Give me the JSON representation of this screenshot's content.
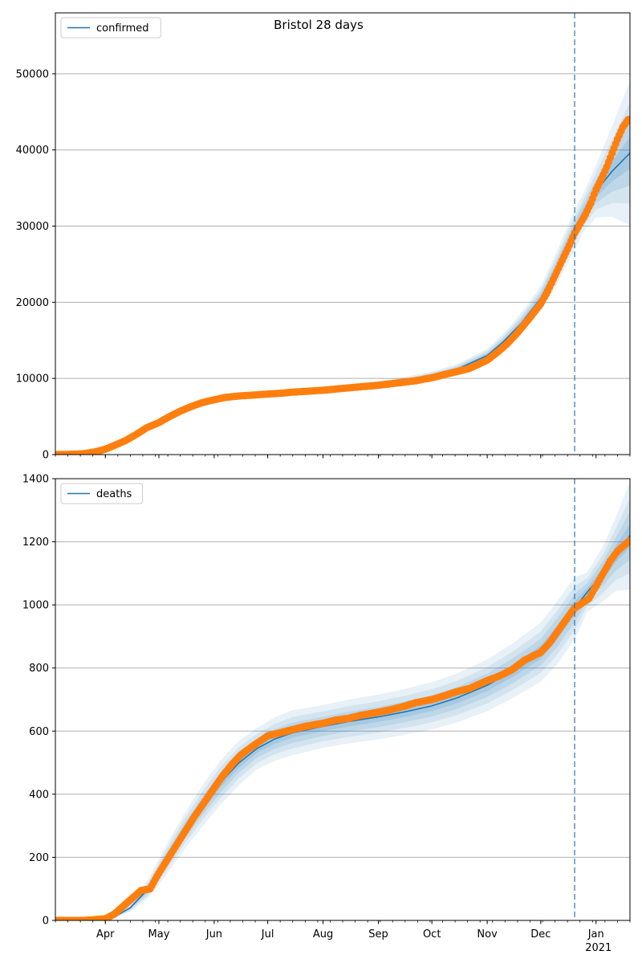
{
  "figure": {
    "title": "Bristol 28 days"
  },
  "colors": {
    "model_line": "#1f77b4",
    "observed": "#ff7f0e",
    "band": "#1f77b4",
    "grid": "#b0b0b0",
    "today_line": "#1f77b4"
  },
  "chart_data": [
    {
      "type": "line",
      "name": "confirmed-panel",
      "title": "Bristol 28 days",
      "xlabel": "",
      "ylabel": "",
      "x_unit": "date",
      "xlim": [
        "2020-03-04",
        "2021-01-20"
      ],
      "ylim": [
        0,
        58000
      ],
      "yticks": [
        0,
        10000,
        20000,
        30000,
        40000,
        50000
      ],
      "xticks": [
        {
          "date": "2020-04-01",
          "label": "Apr"
        },
        {
          "date": "2020-05-01",
          "label": "May"
        },
        {
          "date": "2020-06-01",
          "label": "Jun"
        },
        {
          "date": "2020-07-01",
          "label": "Jul"
        },
        {
          "date": "2020-08-01",
          "label": "Aug"
        },
        {
          "date": "2020-09-01",
          "label": "Sep"
        },
        {
          "date": "2020-10-01",
          "label": "Oct"
        },
        {
          "date": "2020-11-01",
          "label": "Nov"
        },
        {
          "date": "2020-12-01",
          "label": "Dec"
        },
        {
          "date": "2021-01-01",
          "label": "Jan"
        }
      ],
      "xtick_show_labels": false,
      "grid": "y",
      "legend": {
        "position": "top-left",
        "entries": [
          "confirmed"
        ]
      },
      "vline": "2020-12-20",
      "model": {
        "name": "confirmed",
        "dates": [
          "2020-03-04",
          "2020-03-20",
          "2020-04-01",
          "2020-04-10",
          "2020-04-20",
          "2020-05-01",
          "2020-05-10",
          "2020-05-20",
          "2020-06-01",
          "2020-06-15",
          "2020-07-01",
          "2020-07-15",
          "2020-08-01",
          "2020-08-15",
          "2020-09-01",
          "2020-09-15",
          "2020-10-01",
          "2020-10-15",
          "2020-11-01",
          "2020-11-10",
          "2020-11-20",
          "2020-12-01",
          "2020-12-10",
          "2020-12-20",
          "2020-12-25",
          "2021-01-01",
          "2021-01-10",
          "2021-01-20"
        ],
        "values": [
          0,
          100,
          700,
          1500,
          2700,
          4000,
          5200,
          6300,
          7200,
          7700,
          8000,
          8200,
          8500,
          8800,
          9200,
          9600,
          10300,
          11200,
          13000,
          14800,
          17200,
          20500,
          24500,
          29500,
          31800,
          34600,
          37200,
          39600
        ],
        "band_rel": [
          0.05,
          0.05,
          0.05,
          0.05,
          0.05,
          0.05,
          0.05,
          0.05,
          0.05,
          0.05,
          0.05,
          0.05,
          0.05,
          0.05,
          0.05,
          0.06,
          0.06,
          0.06,
          0.07,
          0.07,
          0.08,
          0.08,
          0.09,
          0.09,
          0.08,
          0.1,
          0.16,
          0.24
        ]
      },
      "observed": {
        "name": "observed",
        "dates": [
          "2020-03-04",
          "2020-03-12",
          "2020-03-20",
          "2020-03-26",
          "2020-04-01",
          "2020-04-06",
          "2020-04-12",
          "2020-04-18",
          "2020-04-24",
          "2020-05-01",
          "2020-05-07",
          "2020-05-13",
          "2020-05-19",
          "2020-05-25",
          "2020-06-01",
          "2020-06-07",
          "2020-06-15",
          "2020-06-22",
          "2020-07-01",
          "2020-07-08",
          "2020-07-15",
          "2020-07-22",
          "2020-08-01",
          "2020-08-08",
          "2020-08-15",
          "2020-08-22",
          "2020-09-01",
          "2020-09-08",
          "2020-09-15",
          "2020-09-22",
          "2020-10-01",
          "2020-10-08",
          "2020-10-15",
          "2020-10-22",
          "2020-11-01",
          "2020-11-06",
          "2020-11-12",
          "2020-11-18",
          "2020-11-24",
          "2020-12-01",
          "2020-12-05",
          "2020-12-09",
          "2020-12-13",
          "2020-12-17",
          "2020-12-20",
          "2020-12-23",
          "2020-12-26",
          "2020-12-29",
          "2021-01-01",
          "2021-01-04",
          "2021-01-07",
          "2021-01-10",
          "2021-01-13",
          "2021-01-16",
          "2021-01-19"
        ],
        "values": [
          0,
          30,
          120,
          350,
          700,
          1200,
          1800,
          2600,
          3500,
          4200,
          5000,
          5700,
          6300,
          6800,
          7200,
          7500,
          7700,
          7800,
          7950,
          8050,
          8200,
          8300,
          8450,
          8600,
          8750,
          8900,
          9100,
          9300,
          9500,
          9700,
          10100,
          10500,
          10900,
          11300,
          12400,
          13300,
          14500,
          16000,
          17700,
          19800,
          21500,
          23500,
          25500,
          27500,
          29100,
          30300,
          31500,
          33000,
          34800,
          36200,
          37800,
          39600,
          41400,
          43000,
          44000
        ]
      }
    },
    {
      "type": "line",
      "name": "deaths-panel",
      "xlabel": "",
      "ylabel": "",
      "x_unit": "date",
      "xlim": [
        "2020-03-04",
        "2021-01-20"
      ],
      "ylim": [
        0,
        1400
      ],
      "yticks": [
        0,
        200,
        400,
        600,
        800,
        1000,
        1200,
        1400
      ],
      "xticks": [
        {
          "date": "2020-04-01",
          "label": "Apr"
        },
        {
          "date": "2020-05-01",
          "label": "May"
        },
        {
          "date": "2020-06-01",
          "label": "Jun"
        },
        {
          "date": "2020-07-01",
          "label": "Jul"
        },
        {
          "date": "2020-08-01",
          "label": "Aug"
        },
        {
          "date": "2020-09-01",
          "label": "Sep"
        },
        {
          "date": "2020-10-01",
          "label": "Oct"
        },
        {
          "date": "2020-11-01",
          "label": "Nov"
        },
        {
          "date": "2020-12-01",
          "label": "Dec"
        },
        {
          "date": "2021-01-01",
          "label": "Jan\n2021"
        }
      ],
      "xtick_show_labels": true,
      "grid": "y",
      "legend": {
        "position": "top-left",
        "entries": [
          "deaths"
        ]
      },
      "vline": "2020-12-20",
      "model": {
        "name": "deaths",
        "dates": [
          "2020-03-04",
          "2020-03-25",
          "2020-04-05",
          "2020-04-15",
          "2020-04-25",
          "2020-05-05",
          "2020-05-15",
          "2020-05-25",
          "2020-06-05",
          "2020-06-15",
          "2020-06-25",
          "2020-07-05",
          "2020-07-15",
          "2020-08-01",
          "2020-08-15",
          "2020-09-01",
          "2020-09-15",
          "2020-10-01",
          "2020-10-15",
          "2020-11-01",
          "2020-11-15",
          "2020-12-01",
          "2020-12-10",
          "2020-12-20",
          "2020-12-27",
          "2021-01-05",
          "2021-01-12",
          "2021-01-20"
        ],
        "values": [
          0,
          0,
          8,
          40,
          100,
          190,
          280,
          360,
          440,
          500,
          545,
          575,
          595,
          615,
          630,
          645,
          660,
          680,
          705,
          745,
          790,
          850,
          910,
          990,
          1040,
          1100,
          1160,
          1220
        ],
        "band_rel": [
          0.1,
          0.1,
          0.5,
          0.3,
          0.3,
          0.25,
          0.2,
          0.18,
          0.16,
          0.14,
          0.12,
          0.12,
          0.12,
          0.11,
          0.11,
          0.11,
          0.11,
          0.11,
          0.11,
          0.11,
          0.11,
          0.11,
          0.11,
          0.1,
          0.06,
          0.08,
          0.1,
          0.14
        ]
      },
      "observed": {
        "name": "observed",
        "dates": [
          "2020-03-04",
          "2020-03-20",
          "2020-04-01",
          "2020-04-06",
          "2020-04-11",
          "2020-04-16",
          "2020-04-21",
          "2020-04-26",
          "2020-05-01",
          "2020-05-06",
          "2020-05-11",
          "2020-05-16",
          "2020-05-21",
          "2020-05-26",
          "2020-06-01",
          "2020-06-06",
          "2020-06-11",
          "2020-06-16",
          "2020-06-22",
          "2020-07-01",
          "2020-07-08",
          "2020-07-15",
          "2020-07-22",
          "2020-08-01",
          "2020-08-08",
          "2020-08-15",
          "2020-08-22",
          "2020-09-01",
          "2020-09-08",
          "2020-09-15",
          "2020-09-22",
          "2020-10-01",
          "2020-10-08",
          "2020-10-15",
          "2020-10-22",
          "2020-11-01",
          "2020-11-08",
          "2020-11-15",
          "2020-11-22",
          "2020-12-01",
          "2020-12-06",
          "2020-12-11",
          "2020-12-16",
          "2020-12-20",
          "2020-12-24",
          "2020-12-28",
          "2021-01-01",
          "2021-01-05",
          "2021-01-09",
          "2021-01-13",
          "2021-01-17",
          "2021-01-20"
        ],
        "values": [
          0,
          0,
          5,
          20,
          45,
          70,
          95,
          100,
          150,
          195,
          240,
          285,
          330,
          370,
          420,
          460,
          495,
          525,
          550,
          585,
          595,
          605,
          615,
          625,
          635,
          640,
          650,
          660,
          668,
          678,
          690,
          700,
          712,
          725,
          735,
          760,
          775,
          795,
          825,
          850,
          880,
          920,
          960,
          990,
          1005,
          1020,
          1060,
          1100,
          1140,
          1170,
          1190,
          1205
        ]
      }
    }
  ]
}
